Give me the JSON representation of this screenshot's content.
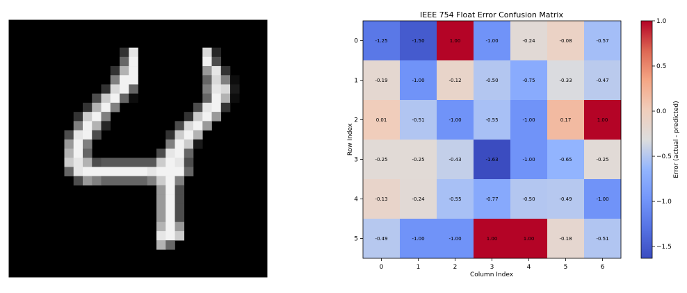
{
  "chart_data": [
    {
      "type": "image",
      "colormap": "gray",
      "rows": 28,
      "cols": 28,
      "runs": [
        [
          3,
          12,
          12,
          0.2
        ],
        [
          3,
          13,
          13,
          0.9
        ],
        [
          3,
          21,
          21,
          0.85
        ],
        [
          3,
          22,
          22,
          0.15
        ],
        [
          4,
          12,
          12,
          0.4
        ],
        [
          4,
          13,
          13,
          0.95
        ],
        [
          4,
          21,
          21,
          0.95
        ],
        [
          4,
          22,
          22,
          0.3
        ],
        [
          5,
          11,
          11,
          0.2
        ],
        [
          5,
          12,
          12,
          0.7
        ],
        [
          5,
          13,
          13,
          0.95
        ],
        [
          5,
          21,
          21,
          0.6
        ],
        [
          5,
          22,
          22,
          0.9
        ],
        [
          5,
          23,
          23,
          0.2
        ],
        [
          6,
          11,
          11,
          0.5
        ],
        [
          6,
          12,
          13,
          0.95
        ],
        [
          6,
          21,
          21,
          0.4
        ],
        [
          6,
          22,
          22,
          0.85
        ],
        [
          6,
          23,
          23,
          0.5
        ],
        [
          6,
          24,
          24,
          0.05
        ],
        [
          7,
          10,
          10,
          0.2
        ],
        [
          7,
          11,
          11,
          0.85
        ],
        [
          7,
          12,
          12,
          0.95
        ],
        [
          7,
          13,
          13,
          0.4
        ],
        [
          7,
          21,
          21,
          0.5
        ],
        [
          7,
          22,
          22,
          0.9
        ],
        [
          7,
          23,
          23,
          0.85
        ],
        [
          7,
          24,
          24,
          0.1
        ],
        [
          8,
          9,
          9,
          0.3
        ],
        [
          8,
          10,
          10,
          0.8
        ],
        [
          8,
          11,
          11,
          0.95
        ],
        [
          8,
          12,
          12,
          0.4
        ],
        [
          8,
          13,
          13,
          0.05
        ],
        [
          8,
          21,
          21,
          0.4
        ],
        [
          8,
          22,
          22,
          0.95
        ],
        [
          8,
          23,
          23,
          0.7
        ],
        [
          8,
          24,
          24,
          0.05
        ],
        [
          9,
          8,
          8,
          0.2
        ],
        [
          9,
          9,
          9,
          0.7
        ],
        [
          9,
          10,
          10,
          0.95
        ],
        [
          9,
          11,
          11,
          0.5
        ],
        [
          9,
          20,
          20,
          0.3
        ],
        [
          9,
          21,
          21,
          0.9
        ],
        [
          9,
          22,
          22,
          0.95
        ],
        [
          9,
          23,
          23,
          0.2
        ],
        [
          10,
          7,
          7,
          0.2
        ],
        [
          10,
          8,
          8,
          0.8
        ],
        [
          10,
          9,
          9,
          0.95
        ],
        [
          10,
          10,
          10,
          0.5
        ],
        [
          10,
          19,
          19,
          0.2
        ],
        [
          10,
          20,
          20,
          0.8
        ],
        [
          10,
          21,
          21,
          0.95
        ],
        [
          10,
          22,
          22,
          0.6
        ],
        [
          11,
          7,
          7,
          0.5
        ],
        [
          11,
          8,
          8,
          0.95
        ],
        [
          11,
          9,
          9,
          0.7
        ],
        [
          11,
          10,
          10,
          0.15
        ],
        [
          11,
          18,
          18,
          0.3
        ],
        [
          11,
          19,
          19,
          0.85
        ],
        [
          11,
          20,
          20,
          0.95
        ],
        [
          11,
          21,
          21,
          0.6
        ],
        [
          12,
          6,
          6,
          0.3
        ],
        [
          12,
          7,
          7,
          0.9
        ],
        [
          12,
          8,
          8,
          0.95
        ],
        [
          12,
          9,
          9,
          0.3
        ],
        [
          12,
          17,
          17,
          0.2
        ],
        [
          12,
          18,
          18,
          0.8
        ],
        [
          12,
          19,
          19,
          0.95
        ],
        [
          12,
          20,
          20,
          0.7
        ],
        [
          13,
          6,
          6,
          0.6
        ],
        [
          13,
          7,
          7,
          0.95
        ],
        [
          13,
          8,
          8,
          0.5
        ],
        [
          13,
          17,
          17,
          0.5
        ],
        [
          13,
          18,
          18,
          0.95
        ],
        [
          13,
          19,
          19,
          0.8
        ],
        [
          13,
          20,
          20,
          0.1
        ],
        [
          14,
          6,
          6,
          0.7
        ],
        [
          14,
          7,
          7,
          0.95
        ],
        [
          14,
          8,
          8,
          0.4
        ],
        [
          14,
          16,
          16,
          0.3
        ],
        [
          14,
          17,
          17,
          0.9
        ],
        [
          14,
          18,
          18,
          0.95
        ],
        [
          14,
          19,
          19,
          0.4
        ],
        [
          15,
          6,
          6,
          0.8
        ],
        [
          15,
          7,
          7,
          0.9
        ],
        [
          15,
          8,
          8,
          0.7
        ],
        [
          15,
          9,
          9,
          0.3
        ],
        [
          15,
          10,
          15,
          0.35
        ],
        [
          15,
          16,
          16,
          0.8
        ],
        [
          15,
          17,
          17,
          0.95
        ],
        [
          15,
          18,
          18,
          0.9
        ],
        [
          15,
          19,
          19,
          0.3
        ],
        [
          16,
          6,
          6,
          0.4
        ],
        [
          16,
          7,
          7,
          0.9
        ],
        [
          16,
          8,
          8,
          0.95
        ],
        [
          16,
          9,
          14,
          0.95
        ],
        [
          16,
          15,
          15,
          0.9
        ],
        [
          16,
          16,
          18,
          0.95
        ],
        [
          16,
          19,
          19,
          0.4
        ],
        [
          17,
          7,
          7,
          0.3
        ],
        [
          17,
          8,
          8,
          0.6
        ],
        [
          17,
          9,
          9,
          0.5
        ],
        [
          17,
          10,
          14,
          0.4
        ],
        [
          17,
          15,
          15,
          0.5
        ],
        [
          17,
          16,
          16,
          0.8
        ],
        [
          17,
          17,
          17,
          0.95
        ],
        [
          17,
          18,
          18,
          0.5
        ],
        [
          18,
          16,
          16,
          0.6
        ],
        [
          18,
          17,
          17,
          0.95
        ],
        [
          18,
          18,
          18,
          0.3
        ],
        [
          19,
          16,
          16,
          0.6
        ],
        [
          19,
          17,
          17,
          0.95
        ],
        [
          19,
          18,
          18,
          0.3
        ],
        [
          20,
          16,
          16,
          0.6
        ],
        [
          20,
          17,
          17,
          0.95
        ],
        [
          20,
          18,
          18,
          0.3
        ],
        [
          21,
          16,
          16,
          0.6
        ],
        [
          21,
          17,
          17,
          0.95
        ],
        [
          21,
          18,
          18,
          0.3
        ],
        [
          22,
          16,
          16,
          0.7
        ],
        [
          22,
          17,
          17,
          0.95
        ],
        [
          22,
          18,
          18,
          0.6
        ],
        [
          23,
          16,
          16,
          0.9
        ],
        [
          23,
          17,
          17,
          0.95
        ],
        [
          23,
          18,
          18,
          0.8
        ],
        [
          24,
          16,
          16,
          0.7
        ],
        [
          24,
          17,
          17,
          0.4
        ]
      ]
    },
    {
      "type": "heatmap",
      "title": "IEEE 754 Float Error Confusion Matrix",
      "xlabel": "Column Index",
      "ylabel": "Row Index",
      "x_ticks": [
        "0",
        "1",
        "2",
        "3",
        "4",
        "5",
        "6"
      ],
      "y_ticks": [
        "0",
        "1",
        "2",
        "3",
        "4",
        "5"
      ],
      "values": [
        [
          -1.25,
          -1.5,
          1.0,
          -1.0,
          -0.24,
          -0.08,
          -0.57
        ],
        [
          -0.19,
          -1.0,
          -0.12,
          -0.5,
          -0.75,
          -0.33,
          -0.47
        ],
        [
          0.01,
          -0.51,
          -1.0,
          -0.55,
          -1.0,
          0.17,
          1.0
        ],
        [
          -0.25,
          -0.25,
          -0.43,
          -1.63,
          -1.0,
          -0.65,
          -0.25
        ],
        [
          -0.13,
          -0.24,
          -0.55,
          -0.77,
          -0.5,
          -0.49,
          -1.0
        ],
        [
          -0.49,
          -1.0,
          -1.0,
          1.0,
          1.0,
          -0.18,
          -0.51
        ]
      ],
      "cell_labels": [
        [
          "-1.25",
          "-1.50",
          "1.00",
          "-1.00",
          "-0.24",
          "-0.08",
          "-0.57"
        ],
        [
          "-0.19",
          "-1.00",
          "-0.12",
          "-0.50",
          "-0.75",
          "-0.33",
          "-0.47"
        ],
        [
          "0.01",
          "-0.51",
          "-1.00",
          "-0.55",
          "-1.00",
          "0.17",
          "1.00"
        ],
        [
          "-0.25",
          "-0.25",
          "-0.43",
          "-1.63",
          "-1.00",
          "-0.65",
          "-0.25"
        ],
        [
          "-0.13",
          "-0.24",
          "-0.55",
          "-0.77",
          "-0.50",
          "-0.49",
          "-1.00"
        ],
        [
          "-0.49",
          "-1.00",
          "-1.00",
          "1.00",
          "1.00",
          "-0.18",
          "-0.51"
        ]
      ],
      "colormap": "coolwarm",
      "vmin": -1.63,
      "vmax": 1.0,
      "colorbar": {
        "label": "Error (actual - predicted)",
        "ticks": [
          1.0,
          0.5,
          0.0,
          -0.5,
          -1.0,
          -1.5
        ],
        "tick_labels": [
          "1.0",
          "0.5",
          "0.0",
          "−0.5",
          "−1.0",
          "−1.5"
        ]
      }
    }
  ]
}
